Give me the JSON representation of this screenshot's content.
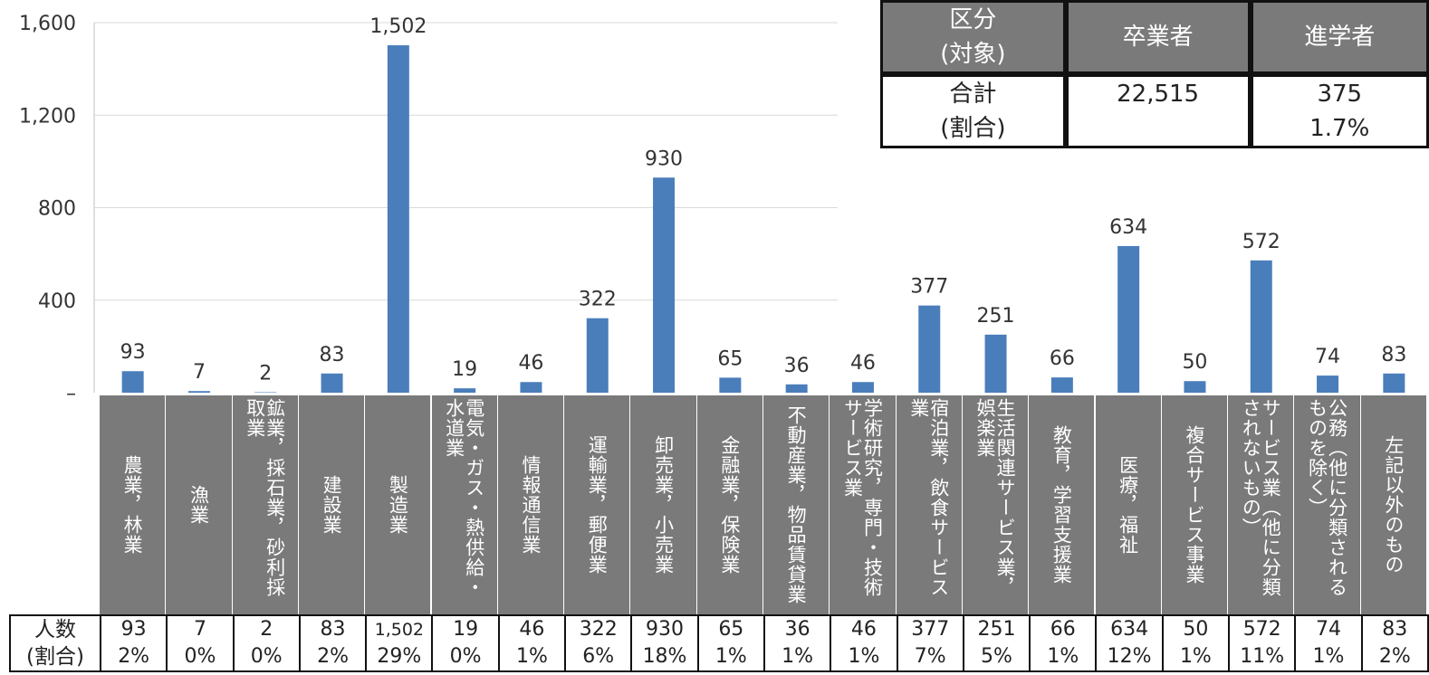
{
  "chart_data": {
    "type": "bar",
    "ylim": [
      0,
      1600
    ],
    "yticks": [
      {
        "value": 0,
        "label": "–"
      },
      {
        "value": 400,
        "label": "400"
      },
      {
        "value": 800,
        "label": "800"
      },
      {
        "value": 1200,
        "label": "1,200"
      },
      {
        "value": 1600,
        "label": "1,600"
      }
    ],
    "grid": true,
    "bar_color": "#4a7ebb",
    "categories": [
      "農業，林業",
      "漁業",
      "鉱業，採石業，砂利採取業",
      "建設業",
      "製造業",
      "電気・ガス・熱供給・水道業",
      "情報通信業",
      "運輸業，郵便業",
      "卸売業，小売業",
      "金融業，保険業",
      "不動産業，物品賃貸業",
      "学術研究，専門・技術サービス業",
      "宿泊業，飲食サービス業",
      "生活関連サービス業，娯楽業",
      "教育，学習支援業",
      "医療，福祉",
      "複合サービス事業",
      "サービス業（他に分類されないもの）",
      "公務（他に分類されるものを除く）",
      "左記以外のもの"
    ],
    "values": [
      93,
      7,
      2,
      83,
      1502,
      19,
      46,
      322,
      930,
      65,
      36,
      46,
      377,
      251,
      66,
      634,
      50,
      572,
      74,
      83
    ],
    "value_labels": [
      "93",
      "7",
      "2",
      "83",
      "1,502",
      "19",
      "46",
      "322",
      "930",
      "65",
      "36",
      "46",
      "377",
      "251",
      "66",
      "634",
      "50",
      "572",
      "74",
      "83"
    ],
    "percent_labels": [
      "2%",
      "0%",
      "0%",
      "2%",
      "29%",
      "0%",
      "1%",
      "6%",
      "18%",
      "1%",
      "1%",
      "1%",
      "7%",
      "5%",
      "1%",
      "12%",
      "1%",
      "11%",
      "1%",
      "2%"
    ]
  },
  "footer": {
    "header_line1": "人数",
    "header_line2": "(割合)"
  },
  "summary_table": {
    "col1_header": "区分\n(対象)",
    "col2_header": "卒業者",
    "col3_header": "進学者",
    "row_label": "合計\n(割合)",
    "graduates": "22,515",
    "advancing_count": "375",
    "advancing_pct": "1.7%"
  }
}
